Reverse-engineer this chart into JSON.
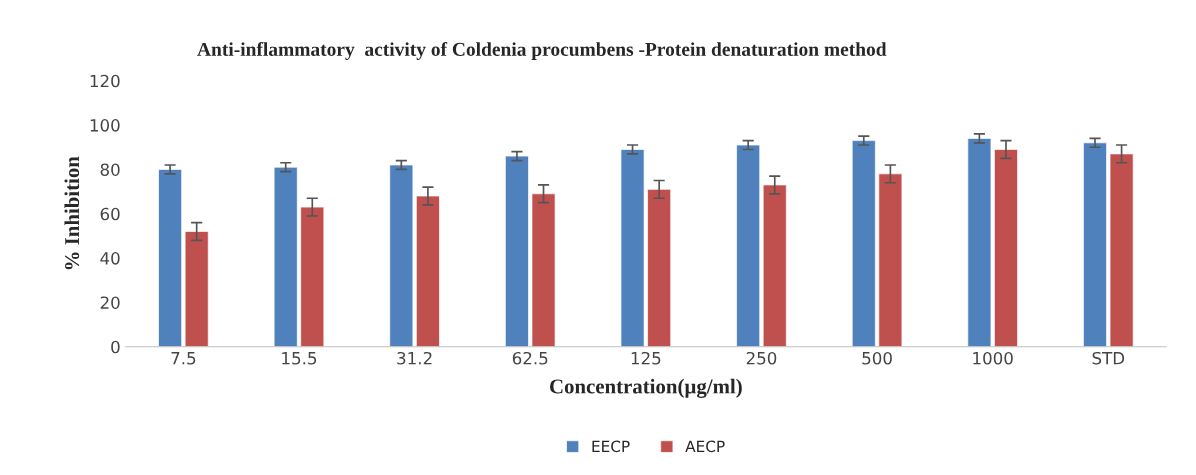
{
  "chart_data": {
    "type": "bar",
    "title": "Anti-inflammatory  activity of Coldenia procumbens -Protein denaturation method",
    "xlabel": "Concentration(µg/ml)",
    "ylabel": "% Inhibition",
    "categories": [
      "7.5",
      "15.5",
      "31.2",
      "62.5",
      "125",
      "250",
      "500",
      "1000",
      "STD"
    ],
    "series": [
      {
        "name": "EECP",
        "color": "#4f81bd",
        "values": [
          80,
          81,
          82,
          86,
          89,
          91,
          93,
          94,
          92
        ],
        "errors": [
          2,
          2,
          2,
          2,
          2,
          2,
          2,
          2,
          2
        ]
      },
      {
        "name": "AECP",
        "color": "#c0504d",
        "values": [
          52,
          63,
          68,
          69,
          71,
          73,
          78,
          89,
          87
        ],
        "errors": [
          4,
          4,
          4,
          4,
          4,
          4,
          4,
          4,
          4
        ]
      }
    ],
    "ylim": [
      0,
      120
    ],
    "yticks": [
      0,
      20,
      40,
      60,
      80,
      100,
      120
    ],
    "grid": false,
    "legend": "bottom"
  }
}
